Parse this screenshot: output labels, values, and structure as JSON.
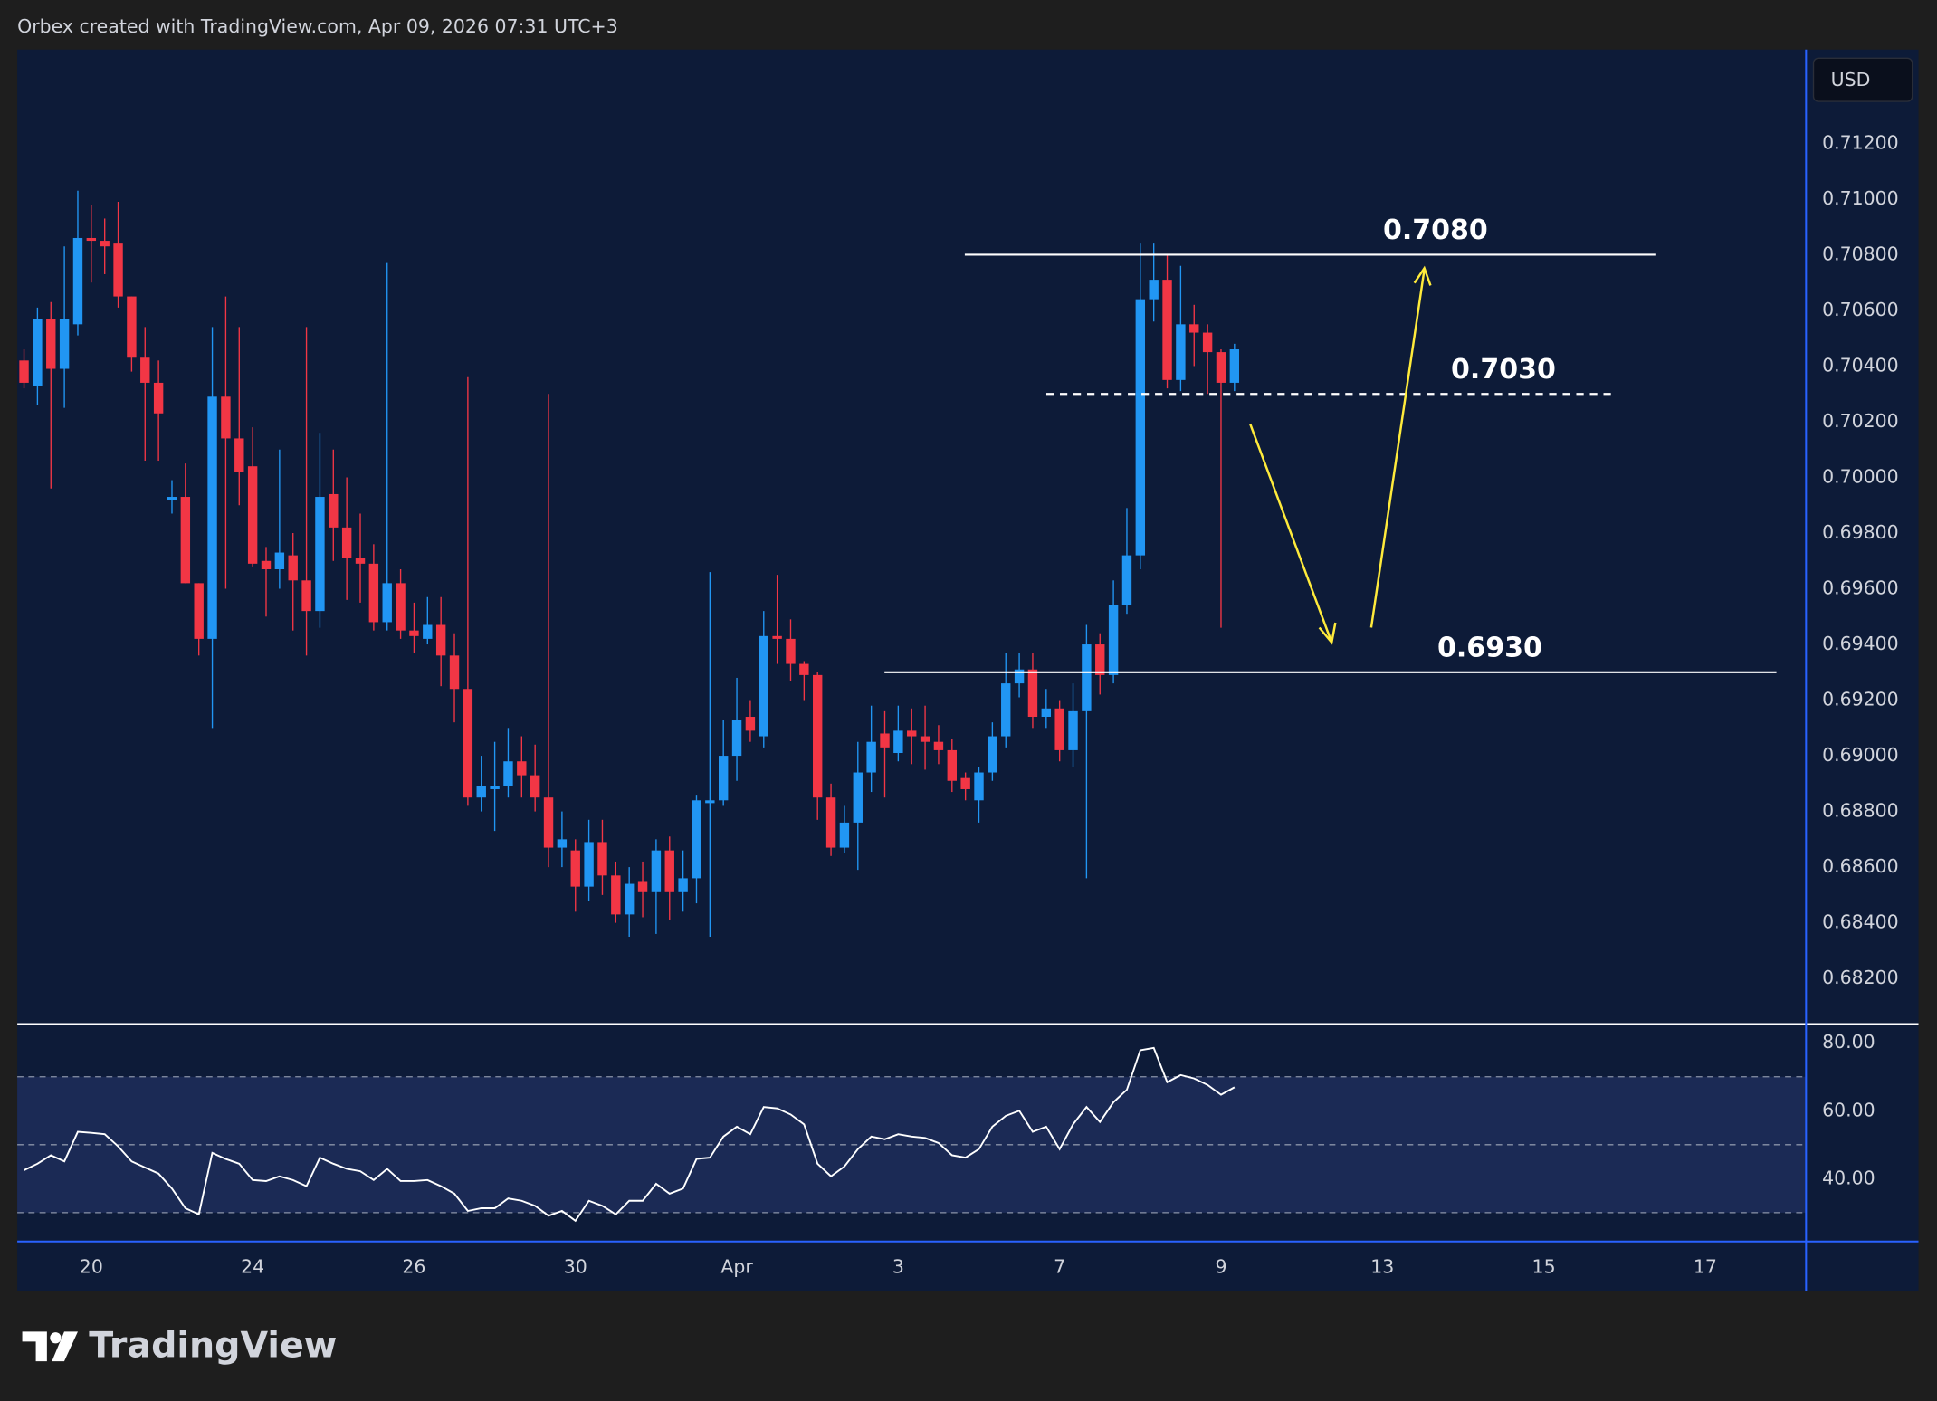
{
  "header": {
    "text": "Orbex created with TradingView.com, Apr 09, 2026 07:31 UTC+3"
  },
  "chart_data": [
    {
      "type": "candlestick",
      "currency": "USD",
      "up_color": "#2196f3",
      "down_color": "#f23645",
      "categories": [
        null,
        null,
        null,
        null,
        null,
        "20",
        null,
        null,
        null,
        null,
        null,
        null,
        null,
        null,
        null,
        null,
        null,
        "24",
        null,
        null,
        null,
        null,
        null,
        null,
        null,
        null,
        null,
        null,
        null,
        "26",
        null,
        null,
        null,
        null,
        null,
        null,
        null,
        null,
        null,
        null,
        null,
        "30",
        null,
        null,
        null,
        null,
        null,
        null,
        null,
        null,
        null,
        null,
        null,
        "Apr",
        null,
        null,
        null,
        null,
        null,
        null,
        null,
        null,
        null,
        null,
        null,
        "3",
        null,
        null,
        null,
        null,
        null,
        null,
        null,
        null,
        null,
        null,
        null,
        "7",
        null,
        null,
        null,
        null,
        null,
        null,
        null,
        null,
        null,
        null,
        null,
        "9",
        null,
        null,
        null,
        null,
        null,
        null,
        null,
        null,
        null,
        null,
        null,
        "13",
        null,
        null,
        null,
        null,
        null,
        null,
        null,
        null,
        null,
        null,
        null,
        "15",
        null,
        null,
        null,
        null,
        null,
        null,
        null,
        null,
        null,
        null,
        null,
        "17",
        null,
        null,
        null,
        null,
        null,
        null,
        null
      ],
      "open": [
        0.7042,
        0.7033,
        0.7057,
        0.7039,
        0.7055,
        0.7086,
        0.7085,
        0.7084,
        0.7065,
        0.7043,
        0.7034,
        0.6992,
        0.6993,
        0.6962,
        0.6942,
        0.7029,
        0.7014,
        0.7004,
        0.697,
        0.6967,
        0.6972,
        0.6963,
        0.6952,
        0.6994,
        0.6982,
        0.6971,
        0.6969,
        0.6948,
        0.6962,
        0.6945,
        0.6942,
        0.6947,
        0.6936,
        0.6924,
        0.6885,
        0.6888,
        0.6889,
        0.6898,
        0.6893,
        0.6885,
        0.6867,
        0.6866,
        0.6853,
        0.6869,
        0.6857,
        0.6843,
        0.6855,
        0.6851,
        0.6866,
        0.6851,
        0.6856,
        0.6883,
        0.6884,
        0.69,
        0.6914,
        0.6907,
        0.6943,
        0.6942,
        0.6933,
        0.6929,
        0.6885,
        0.6867,
        0.6876,
        0.6894,
        0.6908,
        0.6901,
        0.6909,
        0.6907,
        0.6905,
        0.6902,
        0.6892,
        0.6884,
        0.6894,
        0.6907,
        0.6926,
        0.6931,
        0.6914,
        0.6917,
        0.6902,
        0.6916,
        0.694,
        0.6929,
        0.6954,
        0.6972,
        0.7064,
        0.7071,
        0.7035,
        0.7055,
        0.7052,
        0.7045,
        0.7034,
        null,
        null,
        null,
        null,
        null,
        null,
        null,
        null,
        null,
        null,
        null,
        null,
        null,
        null,
        null,
        null,
        null,
        null,
        null,
        null,
        null,
        null,
        null,
        null,
        null,
        null,
        null,
        null,
        null,
        null,
        null,
        null,
        null,
        null,
        null,
        null,
        null,
        null,
        null,
        null,
        null,
        null
      ],
      "high": [
        0.7046,
        0.7061,
        0.7063,
        0.7083,
        0.7103,
        0.7098,
        0.7093,
        0.7099,
        0.7065,
        0.7054,
        0.7042,
        0.6999,
        0.7005,
        0.6962,
        0.7054,
        0.7065,
        0.7054,
        0.7018,
        0.6975,
        0.701,
        0.698,
        0.7054,
        0.7016,
        0.701,
        0.7,
        0.6987,
        0.6976,
        0.7077,
        0.6967,
        0.6955,
        0.6957,
        0.6957,
        0.6944,
        0.7036,
        0.69,
        0.6905,
        0.691,
        0.6907,
        0.6904,
        0.703,
        0.688,
        0.687,
        0.6877,
        0.6877,
        0.6862,
        0.686,
        0.6862,
        0.687,
        0.6871,
        0.6866,
        0.6886,
        0.6966,
        0.6913,
        0.6928,
        0.692,
        0.6952,
        0.6965,
        0.6949,
        0.6934,
        0.693,
        0.689,
        0.6882,
        0.6905,
        0.6918,
        0.6916,
        0.6918,
        0.6917,
        0.6918,
        0.6911,
        0.6906,
        0.6894,
        0.6896,
        0.6912,
        0.6937,
        0.6937,
        0.6937,
        0.6924,
        0.692,
        0.6926,
        0.6947,
        0.6944,
        0.6963,
        0.6989,
        0.7084,
        0.7084,
        0.708,
        0.7076,
        0.7062,
        0.7055,
        0.7046,
        0.7048,
        null,
        null,
        null,
        null,
        null,
        null,
        null,
        null,
        null,
        null,
        null,
        null,
        null,
        null,
        null,
        null,
        null,
        null,
        null,
        null,
        null,
        null,
        null,
        null,
        null,
        null,
        null,
        null,
        null,
        null,
        null,
        null,
        null,
        null,
        null,
        null,
        null,
        null,
        null,
        null,
        null,
        null
      ],
      "low": [
        0.7032,
        0.7026,
        0.6996,
        0.7025,
        0.7051,
        0.707,
        0.7073,
        0.7061,
        0.7038,
        0.7006,
        0.7006,
        0.6987,
        0.6962,
        0.6936,
        0.691,
        0.696,
        0.699,
        0.6968,
        0.695,
        0.696,
        0.6945,
        0.6936,
        0.6946,
        0.697,
        0.6956,
        0.6955,
        0.6945,
        0.6945,
        0.6942,
        0.6937,
        0.694,
        0.6925,
        0.6912,
        0.6882,
        0.688,
        0.6873,
        0.6885,
        0.6885,
        0.688,
        0.686,
        0.686,
        0.6844,
        0.6848,
        0.685,
        0.684,
        0.6835,
        0.6842,
        0.6836,
        0.6841,
        0.6844,
        0.6847,
        0.6835,
        0.6882,
        0.6891,
        0.6905,
        0.6903,
        0.6933,
        0.6927,
        0.692,
        0.6877,
        0.6864,
        0.6865,
        0.6859,
        0.6887,
        0.6885,
        0.6898,
        0.6897,
        0.6895,
        0.6897,
        0.6887,
        0.6884,
        0.6876,
        0.6891,
        0.6903,
        0.6921,
        0.691,
        0.691,
        0.6898,
        0.6896,
        0.6856,
        0.6922,
        0.6926,
        0.6951,
        0.6967,
        0.7056,
        0.7032,
        0.7031,
        0.704,
        0.703,
        0.6946,
        0.7031,
        null,
        null,
        null,
        null,
        null,
        null,
        null,
        null,
        null,
        null,
        null,
        null,
        null,
        null,
        null,
        null,
        null,
        null,
        null,
        null,
        null,
        null,
        null,
        null,
        null,
        null,
        null,
        null,
        null,
        null,
        null,
        null,
        null,
        null,
        null,
        null,
        null,
        null,
        null,
        null,
        null,
        null
      ],
      "close": [
        0.7034,
        0.7057,
        0.7039,
        0.7057,
        0.7086,
        0.7085,
        0.7083,
        0.7065,
        0.7043,
        0.7034,
        0.7023,
        0.6993,
        0.6962,
        0.6942,
        0.7029,
        0.7014,
        0.7002,
        0.6969,
        0.6967,
        0.6973,
        0.6963,
        0.6952,
        0.6993,
        0.6982,
        0.6971,
        0.6969,
        0.6948,
        0.6962,
        0.6945,
        0.6943,
        0.6947,
        0.6936,
        0.6924,
        0.6885,
        0.6889,
        0.6889,
        0.6898,
        0.6893,
        0.6885,
        0.6867,
        0.687,
        0.6853,
        0.6869,
        0.6857,
        0.6843,
        0.6854,
        0.6851,
        0.6866,
        0.6851,
        0.6856,
        0.6884,
        0.6884,
        0.69,
        0.6913,
        0.6909,
        0.6943,
        0.6942,
        0.6933,
        0.6929,
        0.6885,
        0.6867,
        0.6876,
        0.6894,
        0.6905,
        0.6903,
        0.6909,
        0.6907,
        0.6905,
        0.6902,
        0.6891,
        0.6888,
        0.6894,
        0.6907,
        0.6926,
        0.6931,
        0.6914,
        0.6917,
        0.6902,
        0.6916,
        0.694,
        0.6929,
        0.6954,
        0.6972,
        0.7064,
        0.7071,
        0.7035,
        0.7055,
        0.7052,
        0.7045,
        0.7034,
        0.7046,
        null,
        null,
        null,
        null,
        null,
        null,
        null,
        null,
        null,
        null,
        null,
        null,
        null,
        null,
        null,
        null,
        null,
        null,
        null,
        null,
        null,
        null,
        null,
        null,
        null,
        null,
        null,
        null,
        null,
        null,
        null,
        null,
        null,
        null,
        null,
        null,
        null,
        null,
        null,
        null,
        null,
        null
      ],
      "ylim": [
        0.68036,
        0.71537
      ],
      "yticks": [
        {
          "value": 0.682,
          "label": "0.68200"
        },
        {
          "value": 0.684,
          "label": "0.68400"
        },
        {
          "value": 0.686,
          "label": "0.68600"
        },
        {
          "value": 0.688,
          "label": "0.68800"
        },
        {
          "value": 0.69,
          "label": "0.69000"
        },
        {
          "value": 0.692,
          "label": "0.69200"
        },
        {
          "value": 0.694,
          "label": "0.69400"
        },
        {
          "value": 0.696,
          "label": "0.69600"
        },
        {
          "value": 0.698,
          "label": "0.69800"
        },
        {
          "value": 0.7,
          "label": "0.70000"
        },
        {
          "value": 0.702,
          "label": "0.70200"
        },
        {
          "value": 0.704,
          "label": "0.70400"
        },
        {
          "value": 0.706,
          "label": "0.70600"
        },
        {
          "value": 0.708,
          "label": "0.70800"
        },
        {
          "value": 0.71,
          "label": "0.71000"
        },
        {
          "value": 0.712,
          "label": "0.71200"
        }
      ],
      "levels": [
        {
          "value": 0.708,
          "label": "0.7080",
          "line_style": "solid"
        },
        {
          "value": 0.703,
          "label": "0.7030",
          "line_style": "dashed"
        },
        {
          "value": 0.693,
          "label": "0.6930",
          "line_style": "solid"
        }
      ]
    },
    {
      "type": "line",
      "color": "#ffffff",
      "band_color": "#1b2a55",
      "values": [
        42.5,
        44.4,
        46.9,
        45.1,
        53.8,
        53.5,
        53.1,
        49.5,
        45.1,
        43.3,
        41.5,
        37.1,
        31.3,
        29.5,
        47.6,
        45.8,
        44.4,
        39.6,
        39.3,
        40.7,
        39.6,
        37.8,
        46.2,
        44.4,
        42.9,
        42.2,
        39.6,
        42.9,
        39.3,
        39.3,
        39.6,
        37.8,
        35.6,
        30.5,
        31.3,
        31.3,
        34.2,
        33.5,
        32.0,
        29.1,
        30.5,
        27.6,
        33.5,
        32.0,
        29.5,
        33.5,
        33.5,
        38.5,
        35.6,
        37.1,
        45.8,
        46.2,
        52.4,
        55.3,
        53.1,
        61.1,
        60.7,
        58.9,
        56.0,
        44.4,
        40.7,
        43.6,
        48.7,
        52.4,
        51.6,
        53.1,
        52.4,
        52.0,
        50.5,
        46.9,
        46.2,
        48.7,
        55.3,
        58.5,
        60.0,
        53.8,
        55.3,
        48.7,
        56.0,
        61.1,
        56.7,
        62.5,
        66.2,
        77.8,
        78.5,
        68.4,
        70.5,
        69.5,
        67.6,
        64.7,
        66.9,
        null,
        null,
        null,
        null,
        null,
        null,
        null,
        null,
        null,
        null,
        null,
        null,
        null,
        null,
        null,
        null,
        null,
        null,
        null,
        null,
        null,
        null,
        null,
        null,
        null,
        null,
        null,
        null,
        null,
        null,
        null,
        null,
        null,
        null,
        null,
        null,
        null,
        null,
        null,
        null,
        null,
        null
      ],
      "ylim": [
        21.5,
        85.5
      ],
      "yticks": [
        {
          "value": 40,
          "label": "40.00"
        },
        {
          "value": 60,
          "label": "60.00"
        },
        {
          "value": 80,
          "label": "80.00"
        }
      ],
      "reference_lines": [
        70,
        50,
        30
      ]
    }
  ],
  "footer": {
    "logo": "TradingView"
  }
}
